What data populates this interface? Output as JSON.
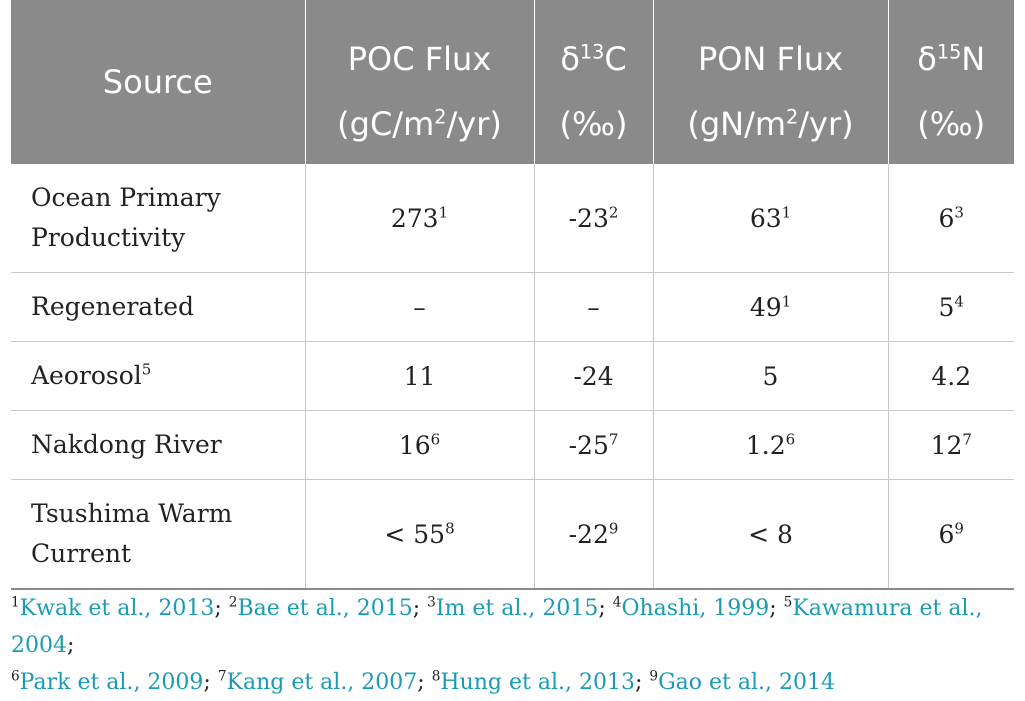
{
  "table": {
    "header": {
      "source": "Source",
      "columns": [
        {
          "line1": "POC Flux",
          "line2_pre": "(gC/m",
          "line2_sup": "2",
          "line2_post": "/yr)"
        },
        {
          "line1_pre": "δ",
          "line1_sup": "13",
          "line1_post": "C",
          "line2": "(‰)"
        },
        {
          "line1": "PON Flux",
          "line2_pre": "(gN/m",
          "line2_sup": "2",
          "line2_post": "/yr)"
        },
        {
          "line1_pre": "δ",
          "line1_sup": "15",
          "line1_post": "N",
          "line2": "(‰)"
        }
      ]
    },
    "rows": [
      {
        "source_line1": "Ocean Primary",
        "source_line2": "Productivity",
        "source_sup": "",
        "cells": [
          {
            "v": "273",
            "s": "1"
          },
          {
            "v": "-23",
            "s": "2"
          },
          {
            "v": "63",
            "s": "1"
          },
          {
            "v": "6",
            "s": "3"
          }
        ]
      },
      {
        "source_line1": "Regenerated",
        "source_line2": "",
        "source_sup": "",
        "cells": [
          {
            "v": "–",
            "s": ""
          },
          {
            "v": "–",
            "s": ""
          },
          {
            "v": "49",
            "s": "1"
          },
          {
            "v": "5",
            "s": "4"
          }
        ]
      },
      {
        "source_line1": "Aeorosol",
        "source_line2": "",
        "source_sup": "5",
        "cells": [
          {
            "v": "11",
            "s": ""
          },
          {
            "v": "-24",
            "s": ""
          },
          {
            "v": "5",
            "s": ""
          },
          {
            "v": "4.2",
            "s": ""
          }
        ]
      },
      {
        "source_line1": "Nakdong River",
        "source_line2": "",
        "source_sup": "",
        "cells": [
          {
            "v": "16",
            "s": "6"
          },
          {
            "v": "-25",
            "s": "7"
          },
          {
            "v": "1.2",
            "s": "6"
          },
          {
            "v": "12",
            "s": "7"
          }
        ]
      },
      {
        "source_line1": "Tsushima Warm",
        "source_line2": "Current",
        "source_sup": "",
        "cells": [
          {
            "v": "< 55",
            "s": "8"
          },
          {
            "v": "-22",
            "s": "9"
          },
          {
            "v": "< 8",
            "s": ""
          },
          {
            "v": "6",
            "s": "9"
          }
        ]
      }
    ]
  },
  "footnotes": [
    {
      "num": "1",
      "text": "Kwak et al., 2013"
    },
    {
      "num": "2",
      "text": "Bae et al., 2015"
    },
    {
      "num": "3",
      "text": "Im et al., 2015"
    },
    {
      "num": "4",
      "text": "Ohashi, 1999"
    },
    {
      "num": "5",
      "text": "Kawamura et al., 2004"
    },
    {
      "num": "6",
      "text": "Park et al., 2009"
    },
    {
      "num": "7",
      "text": "Kang et al., 2007"
    },
    {
      "num": "8",
      "text": "Hung et al., 2013"
    },
    {
      "num": "9",
      "text": "Gao et al., 2014"
    }
  ],
  "footnote_separator": ";",
  "colors": {
    "header_bg": "#8a8a8a",
    "header_text": "#ffffff",
    "ref_link": "#1a9bb5",
    "grid": "#c8c8c8"
  }
}
